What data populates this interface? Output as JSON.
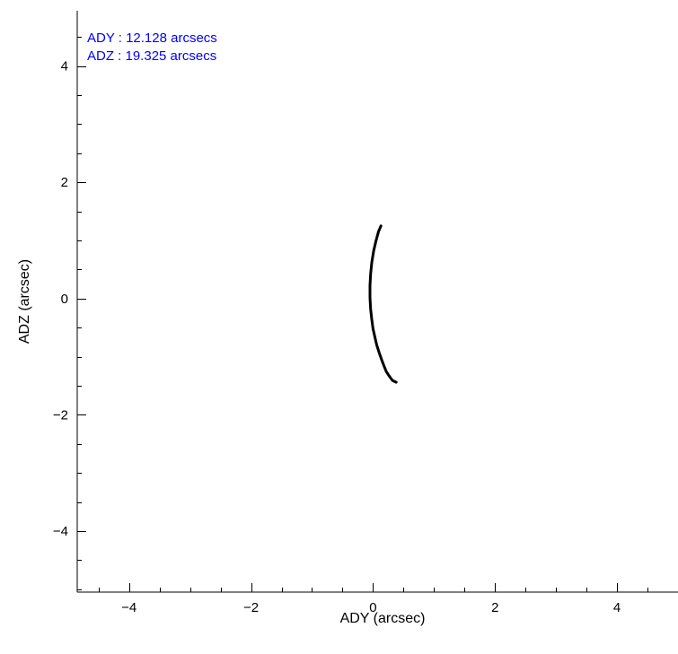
{
  "chart_data": {
    "type": "line",
    "title": "",
    "xlabel": "ADY (arcsec)",
    "ylabel": "ADZ (arcsec)",
    "xlim": [
      -4.85,
      5.0
    ],
    "ylim": [
      -5.05,
      4.95
    ],
    "major_ticks": [
      -4,
      -2,
      0,
      2,
      4
    ],
    "minor_tick_step": 0.5,
    "x_tick_labels": [
      "−4",
      "−2",
      "0",
      "2",
      "4"
    ],
    "y_tick_labels": [
      "−4",
      "−2",
      "0",
      "2",
      "4"
    ],
    "grid": false,
    "annotations": [
      {
        "label": "ADY : 12.128 arcsecs",
        "color": "#0000ff"
      },
      {
        "label": "ADZ : 19.325 arcsecs",
        "color": "#0000ff"
      }
    ],
    "series": [
      {
        "color": "#000000",
        "x": [
          0.13,
          0.09,
          0.05,
          0.01,
          -0.02,
          -0.04,
          -0.05,
          -0.05,
          -0.04,
          -0.02,
          0.0,
          0.03,
          0.06,
          0.1,
          0.14,
          0.18,
          0.22,
          0.27,
          0.32,
          0.38
        ],
        "y": [
          1.25,
          1.15,
          1.0,
          0.82,
          0.62,
          0.42,
          0.22,
          0.02,
          -0.18,
          -0.36,
          -0.52,
          -0.66,
          -0.8,
          -0.93,
          -1.05,
          -1.16,
          -1.26,
          -1.34,
          -1.41,
          -1.44
        ]
      }
    ]
  }
}
